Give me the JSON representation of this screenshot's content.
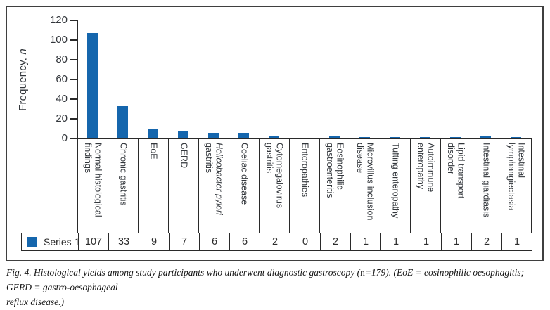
{
  "figure": {
    "caption": {
      "line1_parts": [
        {
          "text": "Fig. 4. Histological yields among study participants who underwent diagnostic gastroscopy (",
          "italic": true
        },
        {
          "text": "n",
          "italic": false
        },
        {
          "text": "=179). (EoE = eosinophilic oesophagitis; GERD = gastro-oesophageal",
          "italic": true
        }
      ],
      "line2": "reflux disease.)"
    }
  },
  "chart_data": {
    "type": "bar",
    "title": "",
    "ylabel_parts": [
      {
        "text": "Frequency, ",
        "italic": false
      },
      {
        "text": "n",
        "italic": true
      }
    ],
    "ylim": [
      0,
      120
    ],
    "yticks": [
      0,
      20,
      40,
      60,
      80,
      100,
      120
    ],
    "grid": false,
    "legend_position": "bottom-table",
    "bar_color": "#1566ad",
    "categories": [
      {
        "parts": [
          {
            "text": "Normal histological findings",
            "italic": false
          }
        ]
      },
      {
        "parts": [
          {
            "text": "Chronic gastritis",
            "italic": false
          }
        ]
      },
      {
        "parts": [
          {
            "text": "EoE",
            "italic": false
          }
        ]
      },
      {
        "parts": [
          {
            "text": "GERD",
            "italic": false
          }
        ]
      },
      {
        "parts": [
          {
            "text": "Helicobacter pylori",
            "italic": true
          },
          {
            "text": " gastritis",
            "italic": false
          }
        ]
      },
      {
        "parts": [
          {
            "text": "Coeliac disease",
            "italic": false
          }
        ]
      },
      {
        "parts": [
          {
            "text": "Cytomegalovirus gastritis",
            "italic": false
          }
        ]
      },
      {
        "parts": [
          {
            "text": "Enteropathies",
            "italic": false
          }
        ]
      },
      {
        "parts": [
          {
            "text": "Eosinophilic gastroenteritis",
            "italic": false
          }
        ]
      },
      {
        "parts": [
          {
            "text": "Microvillus inclusion disease",
            "italic": false
          }
        ]
      },
      {
        "parts": [
          {
            "text": "Tufting enteropathy",
            "italic": false
          }
        ]
      },
      {
        "parts": [
          {
            "text": "Autoimmune enteropathy",
            "italic": false
          }
        ]
      },
      {
        "parts": [
          {
            "text": "Lipid transport disorder",
            "italic": false
          }
        ]
      },
      {
        "parts": [
          {
            "text": "Intestinal giardiasis",
            "italic": false
          }
        ]
      },
      {
        "parts": [
          {
            "text": "Intestinal lymphangiectasia",
            "italic": false
          }
        ]
      }
    ],
    "series": [
      {
        "name": "Series 1",
        "values": [
          107,
          33,
          9,
          7,
          6,
          6,
          2,
          0,
          2,
          1,
          1,
          1,
          1,
          2,
          1
        ]
      }
    ]
  }
}
